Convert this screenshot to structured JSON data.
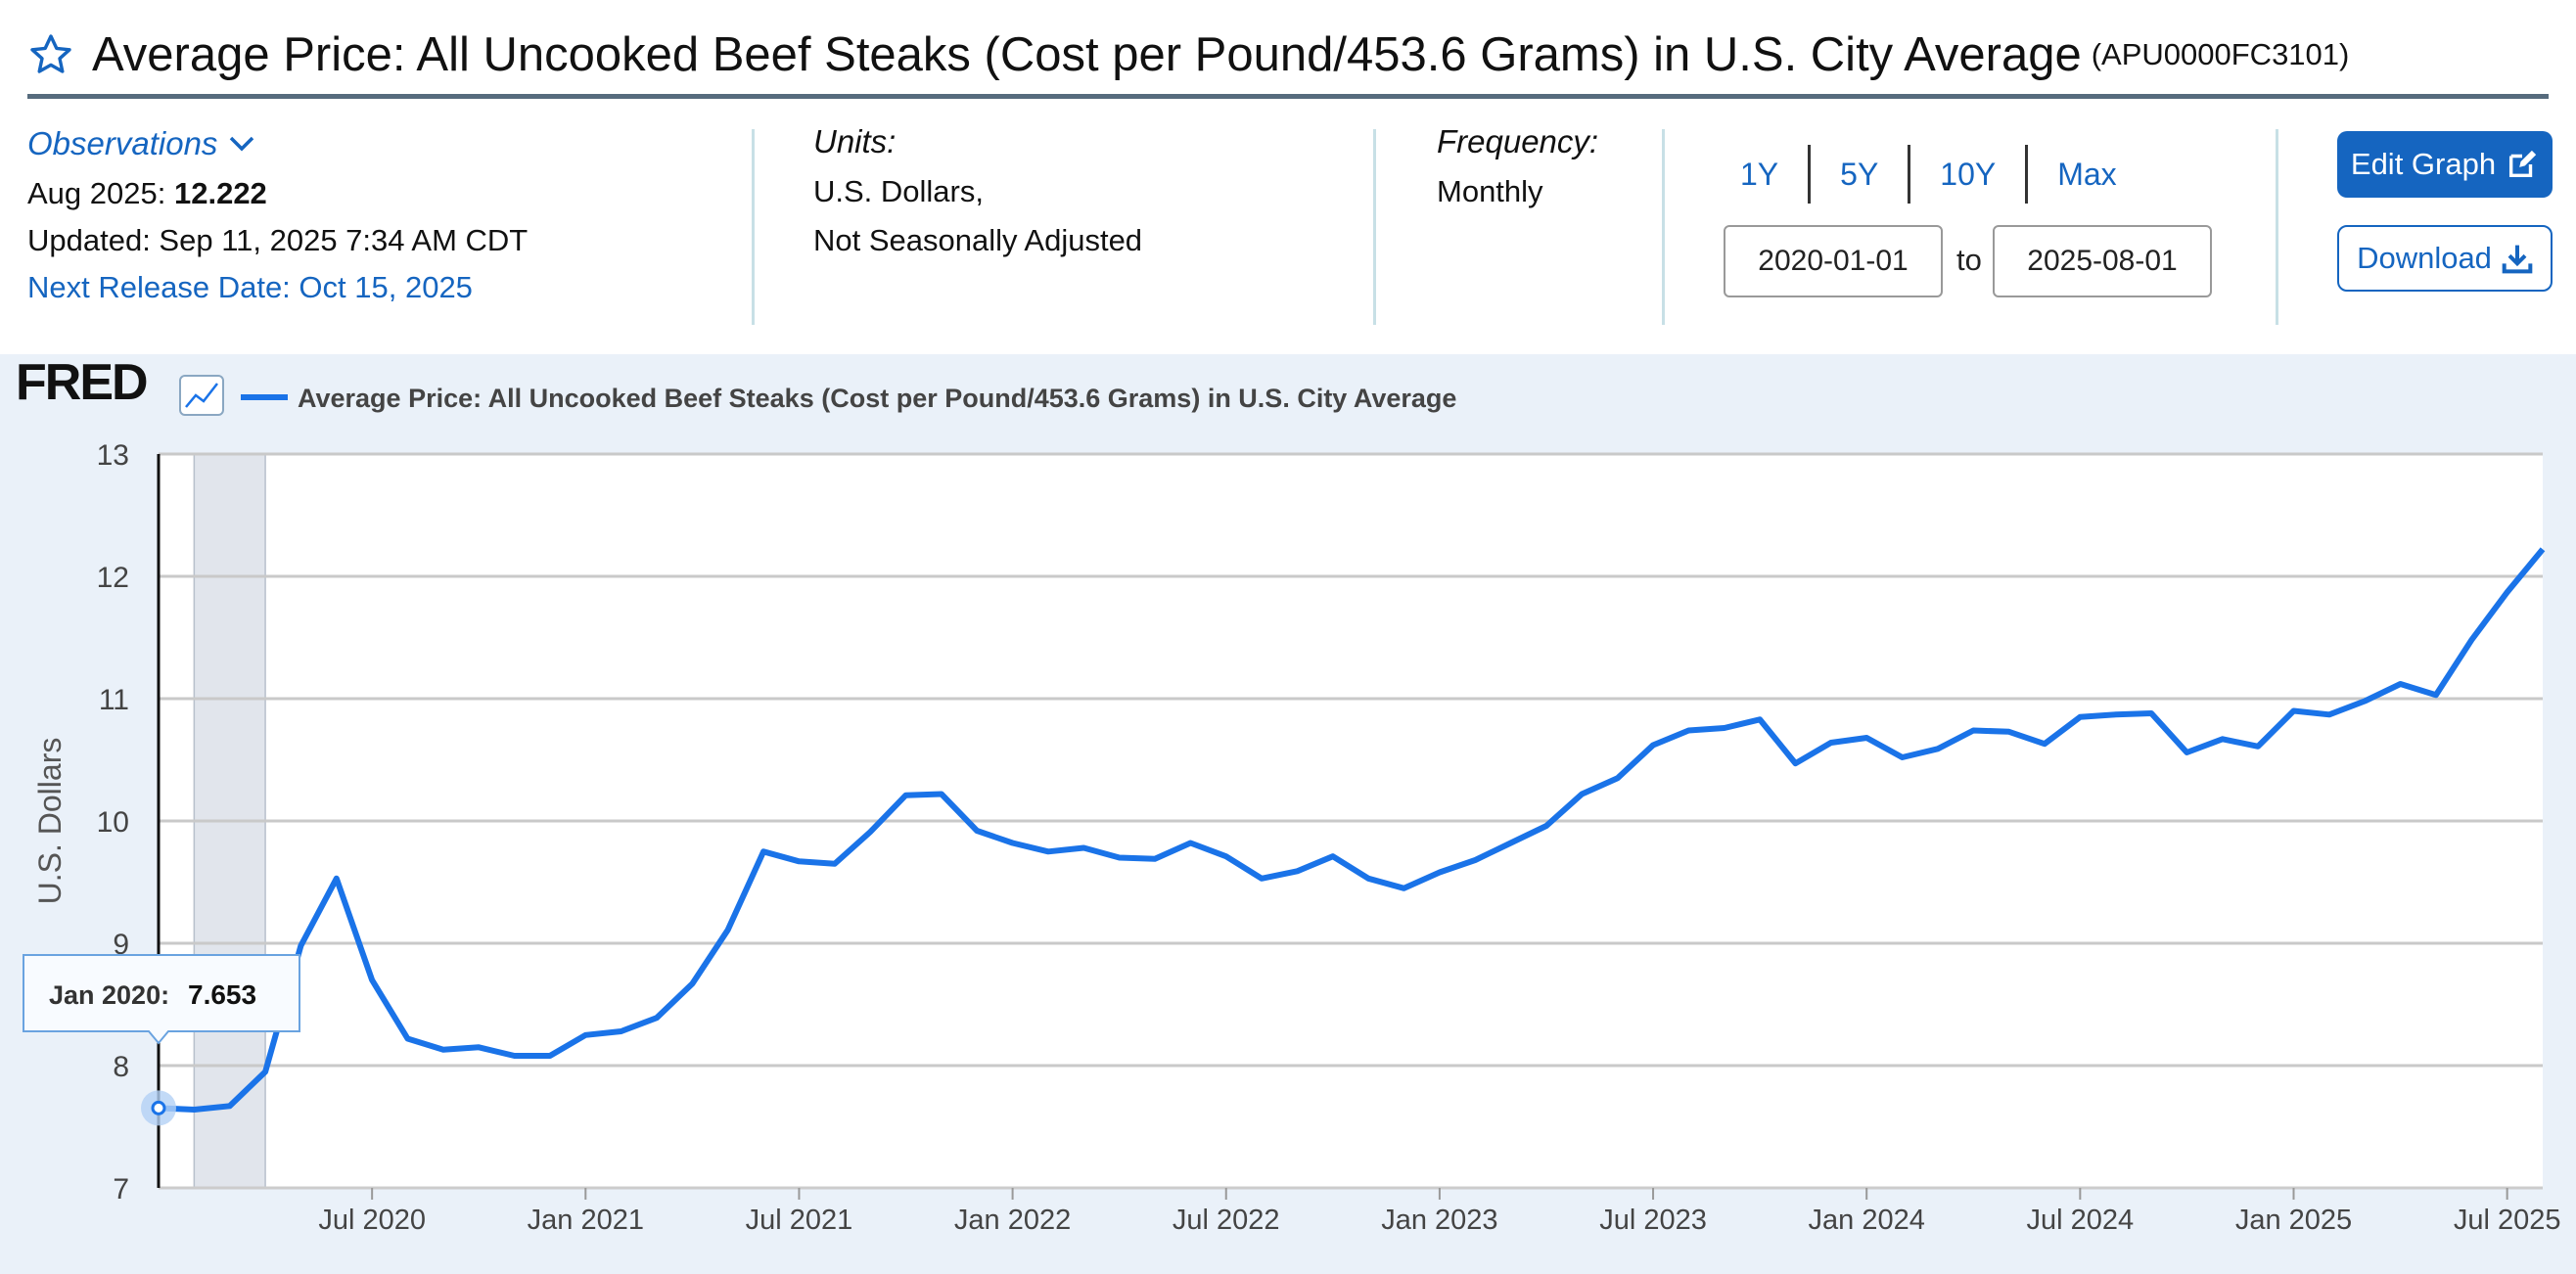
{
  "header": {
    "title": "Average Price: All Uncooked Beef Steaks (Cost per Pound/453.6 Grams) in U.S. City Average",
    "series_id": "(APU0000FC3101)"
  },
  "observations": {
    "link_label": "Observations",
    "latest_label": "Aug 2025:",
    "latest_value": "12.222",
    "updated": "Updated: Sep 11, 2025 7:34 AM CDT",
    "next_release": "Next Release Date: Oct 15, 2025"
  },
  "units": {
    "label": "Units:",
    "line1": "U.S. Dollars,",
    "line2": "Not Seasonally Adjusted"
  },
  "frequency": {
    "label": "Frequency:",
    "value": "Monthly"
  },
  "range": {
    "buttons": [
      "1Y",
      "5Y",
      "10Y",
      "Max"
    ],
    "start": "2020-01-01",
    "to_label": "to",
    "end": "2025-08-01"
  },
  "actions": {
    "edit": "Edit Graph",
    "download": "Download"
  },
  "colors": {
    "accent": "#1565c0",
    "line": "#1a73e8",
    "panel": "#eaf1f9"
  },
  "chart_data": {
    "type": "line",
    "brand": "FRED",
    "legend": "Average Price: All Uncooked Beef Steaks (Cost per Pound/453.6 Grams) in U.S. City Average",
    "ylabel": "U.S. Dollars",
    "ylim": [
      7,
      13
    ],
    "yticks": [
      7,
      8,
      9,
      10,
      11,
      12,
      13
    ],
    "xticks": [
      {
        "label": "Jul 2020",
        "date": "2020-07"
      },
      {
        "label": "Jan 2021",
        "date": "2021-01"
      },
      {
        "label": "Jul 2021",
        "date": "2021-07"
      },
      {
        "label": "Jan 2022",
        "date": "2022-01"
      },
      {
        "label": "Jul 2022",
        "date": "2022-07"
      },
      {
        "label": "Jan 2023",
        "date": "2023-01"
      },
      {
        "label": "Jul 2023",
        "date": "2023-07"
      },
      {
        "label": "Jan 2024",
        "date": "2024-01"
      },
      {
        "label": "Jul 2024",
        "date": "2024-07"
      },
      {
        "label": "Jan 2025",
        "date": "2025-01"
      },
      {
        "label": "Jul 2025",
        "date": "2025-07"
      }
    ],
    "recession": {
      "start": "2020-02",
      "end": "2020-04"
    },
    "grid": true,
    "tooltip": {
      "date": "Jan 2020:",
      "value": "7.653"
    },
    "series": [
      {
        "dates": [
          "2020-01",
          "2020-02",
          "2020-03",
          "2020-04",
          "2020-05",
          "2020-06",
          "2020-07",
          "2020-08",
          "2020-09",
          "2020-10",
          "2020-11",
          "2020-12",
          "2021-01",
          "2021-02",
          "2021-03",
          "2021-04",
          "2021-05",
          "2021-06",
          "2021-07",
          "2021-08",
          "2021-09",
          "2021-10",
          "2021-11",
          "2021-12",
          "2022-01",
          "2022-02",
          "2022-03",
          "2022-04",
          "2022-05",
          "2022-06",
          "2022-07",
          "2022-08",
          "2022-09",
          "2022-10",
          "2022-11",
          "2022-12",
          "2023-01",
          "2023-02",
          "2023-03",
          "2023-04",
          "2023-05",
          "2023-06",
          "2023-07",
          "2023-08",
          "2023-09",
          "2023-10",
          "2023-11",
          "2023-12",
          "2024-01",
          "2024-02",
          "2024-03",
          "2024-04",
          "2024-05",
          "2024-06",
          "2024-07",
          "2024-08",
          "2024-09",
          "2024-10",
          "2024-11",
          "2024-12",
          "2025-01",
          "2025-02",
          "2025-03",
          "2025-04",
          "2025-05",
          "2025-06",
          "2025-07",
          "2025-08"
        ],
        "values": [
          7.653,
          7.64,
          7.67,
          7.95,
          8.98,
          9.53,
          8.7,
          8.22,
          8.13,
          8.15,
          8.08,
          8.08,
          8.25,
          8.28,
          8.39,
          8.67,
          9.11,
          9.75,
          9.67,
          9.65,
          9.91,
          10.21,
          10.22,
          9.92,
          9.82,
          9.75,
          9.78,
          9.7,
          9.69,
          9.82,
          9.71,
          9.53,
          9.59,
          9.71,
          9.53,
          9.45,
          9.58,
          9.68,
          9.82,
          9.96,
          10.22,
          10.35,
          10.62,
          10.74,
          10.76,
          10.83,
          10.47,
          10.64,
          10.68,
          10.52,
          10.59,
          10.74,
          10.73,
          10.63,
          10.85,
          10.87,
          10.88,
          10.56,
          10.67,
          10.61,
          10.9,
          10.87,
          10.98,
          11.12,
          11.03,
          11.48,
          11.87,
          12.222
        ]
      }
    ]
  }
}
